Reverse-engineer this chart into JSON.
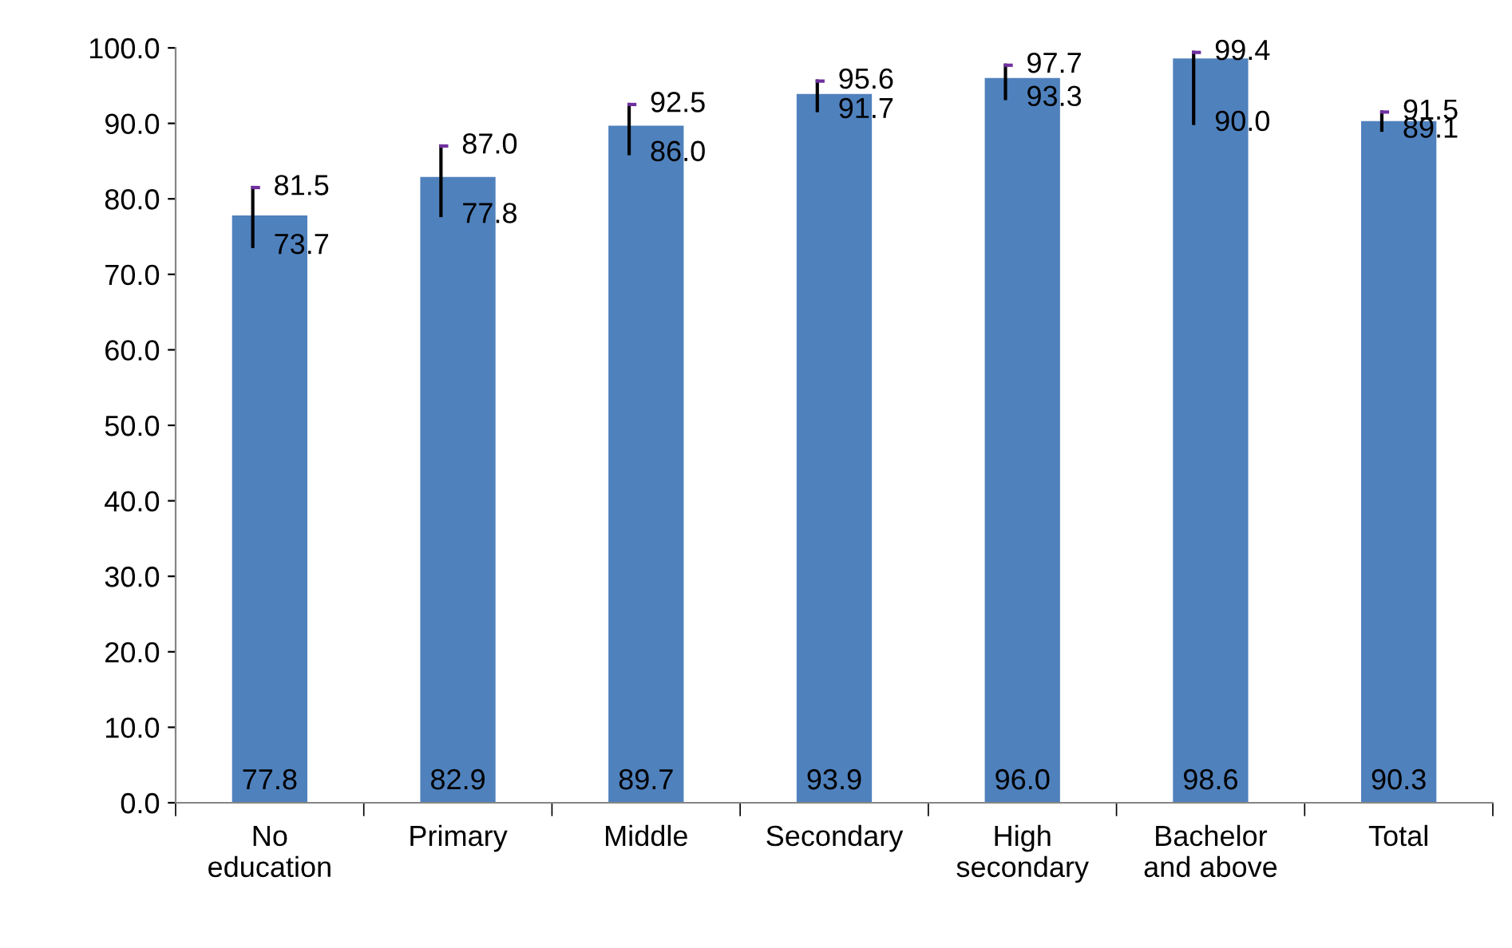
{
  "chart_data": {
    "type": "bar",
    "categories": [
      "No\neducation",
      "Primary",
      "Middle",
      "Secondary",
      "High\nsecondary",
      "Bachelor\nand above",
      "Total"
    ],
    "values": [
      77.8,
      82.9,
      89.7,
      93.9,
      96.0,
      98.6,
      90.3
    ],
    "color": "#4f81bd",
    "errors": [
      [
        73.7,
        81.5
      ],
      [
        77.8,
        87.0
      ],
      [
        86.0,
        92.5
      ],
      [
        91.7,
        95.6
      ],
      [
        93.3,
        97.7
      ],
      [
        90.0,
        99.4
      ],
      [
        89.1,
        91.5
      ]
    ],
    "value_labels": [
      "77.8",
      "82.9",
      "89.7",
      "93.9",
      "96.0",
      "98.6",
      "90.3"
    ],
    "annotations": [
      "81.5",
      "73.7",
      "87.0",
      "77.8",
      "92.5",
      "86.0",
      "95.6",
      "91.7",
      "97.7",
      "93.3",
      "99.4",
      "90.0",
      "91.5",
      "89.1"
    ],
    "ylim": [
      0,
      100
    ],
    "yticks": [
      {
        "value": 0,
        "label": "0.0"
      },
      {
        "value": 10,
        "label": "10.0"
      },
      {
        "value": 20,
        "label": "20.0"
      },
      {
        "value": 30,
        "label": "30.0"
      },
      {
        "value": 40,
        "label": "40.0"
      },
      {
        "value": 50,
        "label": "50.0"
      },
      {
        "value": 60,
        "label": "60.0"
      },
      {
        "value": 70,
        "label": "70.0"
      },
      {
        "value": 80,
        "label": "80.0"
      },
      {
        "value": 90,
        "label": "90.0"
      },
      {
        "value": 100,
        "label": "100.0"
      }
    ],
    "grid": false
  }
}
